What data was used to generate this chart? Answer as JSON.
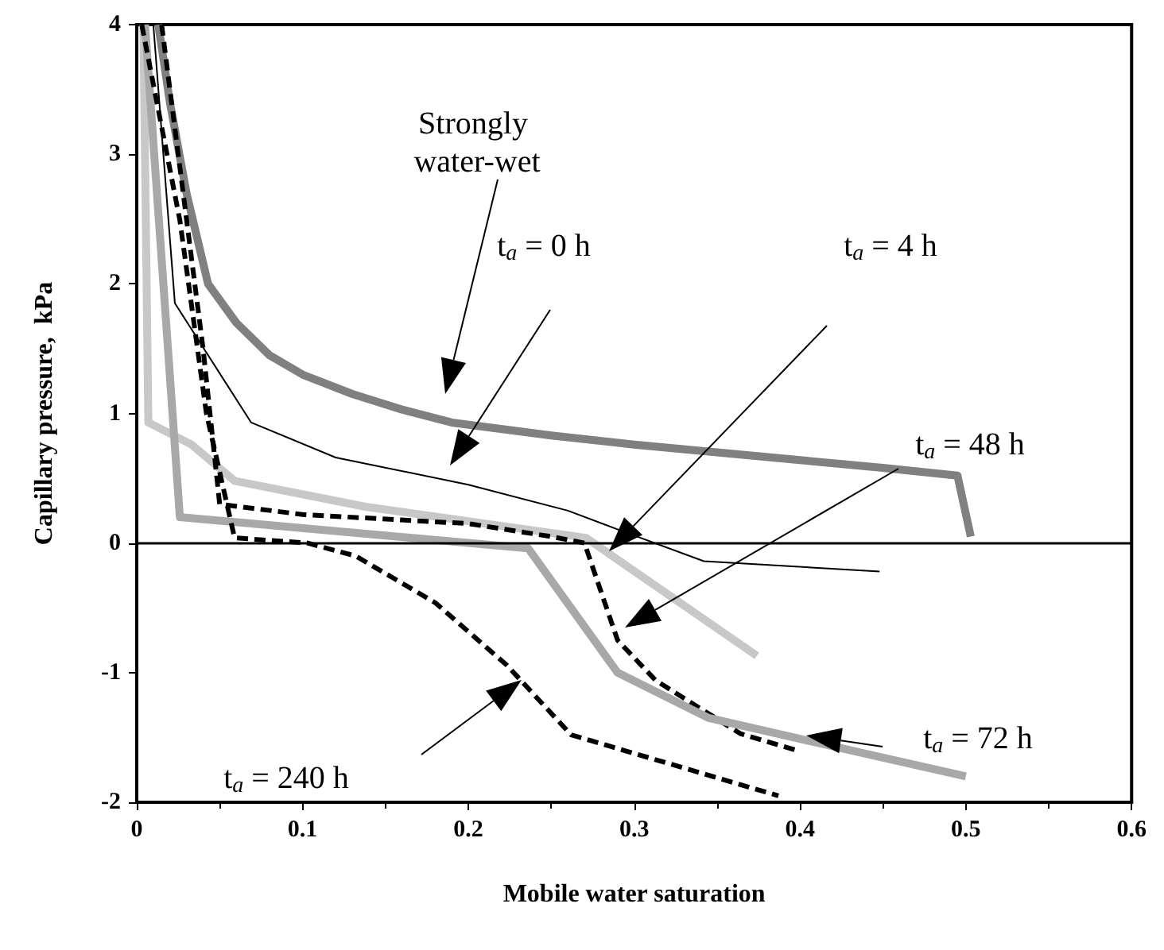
{
  "chart_data": {
    "type": "line",
    "xlabel": "Mobile water saturation",
    "ylabel": "Capillary pressure,  kPa",
    "xlim": [
      0,
      0.6
    ],
    "xticks": [
      0,
      0.1,
      0.2,
      0.3,
      0.4,
      0.5,
      0.6
    ],
    "ylim": [
      -2,
      4
    ],
    "yticks": [
      -2,
      -1,
      0,
      1,
      2,
      3,
      4
    ],
    "grid": false,
    "marker": "none",
    "series": [
      {
        "color": "#808080",
        "line_style": "solid",
        "x": [
          0.013,
          0.02,
          0.03,
          0.043,
          0.06,
          0.08,
          0.1,
          0.13,
          0.16,
          0.19,
          0.25,
          0.3,
          0.35,
          0.4,
          0.45,
          0.495,
          0.503
        ],
        "values": [
          4,
          3.4,
          2.7,
          2.0,
          1.7,
          1.45,
          1.3,
          1.15,
          1.03,
          0.93,
          0.83,
          0.76,
          0.7,
          0.64,
          0.58,
          0.52,
          0.05
        ]
      },
      {
        "color": "#000000",
        "line_style": "solid",
        "x": [
          0.01,
          0.023,
          0.069,
          0.12,
          0.2,
          0.26,
          0.287,
          0.342,
          0.448
        ],
        "values": [
          4,
          1.85,
          0.93,
          0.66,
          0.45,
          0.25,
          0.12,
          -0.14,
          -0.22
        ]
      },
      {
        "color": "#c8c8c8",
        "line_style": "solid",
        "x": [
          0.004,
          0.007,
          0.033,
          0.059,
          0.138,
          0.271,
          0.374
        ],
        "values": [
          4,
          0.93,
          0.76,
          0.48,
          0.28,
          0.04,
          -0.87
        ]
      },
      {
        "color": "#000000",
        "line_style": "dashed",
        "x": [
          0.015,
          0.04,
          0.05,
          0.1,
          0.2,
          0.25,
          0.27,
          0.29,
          0.313,
          0.364,
          0.398
        ],
        "values": [
          4,
          1.5,
          0.3,
          0.22,
          0.15,
          0.05,
          0,
          -0.75,
          -1.06,
          -1.47,
          -1.6
        ]
      },
      {
        "color": "#a8a8a8",
        "line_style": "solid",
        "x": [
          0.005,
          0.026,
          0.236,
          0.29,
          0.345,
          0.448,
          0.5
        ],
        "values": [
          4,
          0.2,
          -0.04,
          -1.0,
          -1.35,
          -1.65,
          -1.8
        ]
      },
      {
        "color": "#000000",
        "line_style": "dashed",
        "x": [
          0.003,
          0.026,
          0.042,
          0.059,
          0.103,
          0.132,
          0.18,
          0.223,
          0.262,
          0.387
        ],
        "values": [
          4,
          2.49,
          1.0,
          0.04,
          0,
          -0.1,
          -0.46,
          -0.94,
          -1.48,
          -1.95
        ]
      }
    ],
    "ref_lines": [
      {
        "axis": "y",
        "value": 0,
        "label": null,
        "color": "#000000"
      }
    ],
    "annotations": [
      "Strongly water-wet",
      "t$_{a}$ = 0 h",
      "t$_{a}$ = 4 h",
      "t$_{a}$ = 48 h",
      "t$_{a}$ = 72 h",
      "t$_{a}$ = 240 h"
    ]
  }
}
